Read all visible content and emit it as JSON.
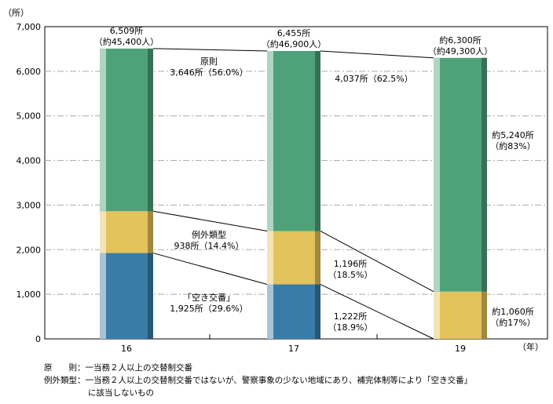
{
  "chart_data": {
    "type": "bar",
    "stacked": true,
    "y_unit_label": "（所）",
    "x_unit_label": "（年）",
    "categories": [
      "16",
      "17",
      "19"
    ],
    "ylim": [
      0,
      7000
    ],
    "yticks": [
      "0",
      "1,000",
      "2,000",
      "3,000",
      "4,000",
      "5,000",
      "6,000",
      "7,000"
    ],
    "grid": true,
    "series": [
      {
        "key": "akikoban",
        "values": [
          1925,
          1222,
          0
        ],
        "color": "#3a7ca8"
      },
      {
        "key": "exception",
        "values": [
          938,
          1196,
          1060
        ],
        "color": "#e4c25c"
      },
      {
        "key": "principle",
        "values": [
          3646,
          4037,
          5240
        ],
        "color": "#4ea27a"
      }
    ],
    "totals": [
      [
        "6,509所",
        "（約45,400人）"
      ],
      [
        "6,455所",
        "（約46,900人）"
      ],
      [
        "約6,300所",
        "（約49,300人）"
      ]
    ],
    "annotations": {
      "principle": [
        [
          "原則",
          "3,646所（56.0%）"
        ],
        [
          "4,037所（62.5%）"
        ],
        [
          "約5,240所",
          "（約83%）"
        ]
      ],
      "exception": [
        [
          "例外類型",
          "938所（14.4%）"
        ],
        [
          "1,196所",
          "（18.5%）"
        ],
        [
          "約1,060所",
          "（約17%）"
        ]
      ],
      "akikoban": [
        [
          "「空き交番」",
          "1,925所（29.6%）"
        ],
        [
          "1,222所",
          "（18.9%）"
        ]
      ]
    }
  },
  "notes": {
    "line1_label": "原　　則：",
    "line1_text": "一当務２人以上の交替制交番",
    "line2_label": "例外類型：",
    "line2_text": "一当務２人以上の交替制交番ではないが、警察事象の少ない地域にあり、補完体制等により「空き交番」",
    "line3_text": "に該当しないもの"
  }
}
